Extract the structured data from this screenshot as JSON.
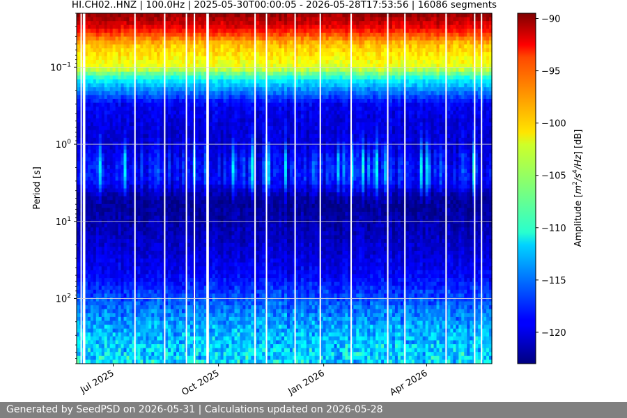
{
  "chart_data": {
    "type": "heatmap",
    "title": "HI.CH02..HNZ | 100.0Hz | 2025-05-30T00:00:05 - 2026-05-28T17:53:56 | 16086 segments",
    "xlabel": "",
    "ylabel": "Period [s]",
    "y_scale": "log",
    "y_inverted": true,
    "ylim": [
      0.02,
      700
    ],
    "xlim": [
      "2025-05-30",
      "2026-05-28"
    ],
    "x_ticks": [
      {
        "date": "2025-07-01",
        "label": "Jul 2025"
      },
      {
        "date": "2025-10-01",
        "label": "Oct 2025"
      },
      {
        "date": "2026-01-01",
        "label": "Jan 2026"
      },
      {
        "date": "2026-04-01",
        "label": "Apr 2026"
      }
    ],
    "y_ticks": [
      {
        "value": 0.1,
        "label": "10",
        "exp": "−1"
      },
      {
        "value": 1,
        "label": "10",
        "exp": "0"
      },
      {
        "value": 10,
        "label": "10",
        "exp": "1"
      },
      {
        "value": 100,
        "label": "10",
        "exp": "2"
      }
    ],
    "grid": true,
    "colorbar": {
      "label": "Amplitude [m²/s⁴/Hz] [dB]",
      "label_base": "Amplitude [",
      "label_m": "m",
      "label_sup1": "2",
      "label_mid": "/s",
      "label_sup2": "4",
      "label_end": "/Hz",
      "label_tail": "] [dB]",
      "range": [
        -123,
        -89.5
      ],
      "ticks": [
        -90,
        -95,
        -100,
        -105,
        -110,
        -115,
        -120
      ],
      "colormap": "jet"
    },
    "period_profile_db": [
      {
        "period": 0.02,
        "db": -90
      },
      {
        "period": 0.03,
        "db": -93
      },
      {
        "period": 0.05,
        "db": -100
      },
      {
        "period": 0.1,
        "db": -103
      },
      {
        "period": 0.15,
        "db": -111
      },
      {
        "period": 0.3,
        "db": -119
      },
      {
        "period": 1,
        "db": -121
      },
      {
        "period": 3,
        "db": -120
      },
      {
        "period": 5,
        "db": -122.5
      },
      {
        "period": 10,
        "db": -121.5
      },
      {
        "period": 50,
        "db": -119
      },
      {
        "period": 150,
        "db": -115
      },
      {
        "period": 300,
        "db": -113
      },
      {
        "period": 700,
        "db": -112
      }
    ],
    "data_gaps": [
      "2025-06-03",
      "2025-06-05",
      "2025-06-06",
      "2025-07-20",
      "2025-08-15",
      "2025-09-03",
      "2025-09-10",
      "2025-09-21",
      "2025-09-22",
      "2025-11-02",
      "2025-11-12",
      "2025-12-07",
      "2025-12-29",
      "2026-01-25",
      "2026-02-26",
      "2026-03-13",
      "2026-04-18",
      "2026-05-13",
      "2026-05-19"
    ]
  },
  "footer": {
    "text": "Generated by SeedPSD on 2026-05-31 | Calculations updated on 2026-05-28"
  }
}
